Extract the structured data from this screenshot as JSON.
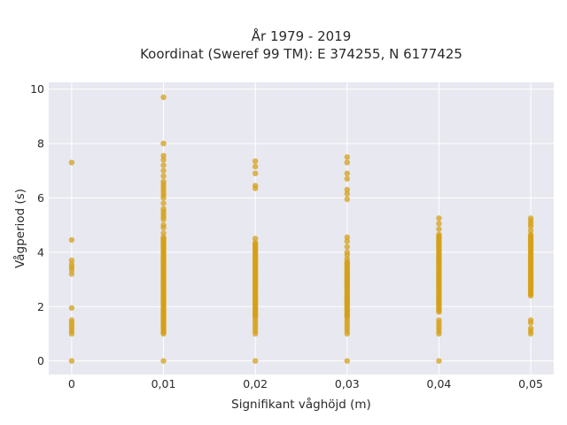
{
  "chart_data": {
    "type": "scatter",
    "title_line1": "År 1979 - 2019",
    "title_line2": "Koordinat (Sweref 99 TM): E 374255, N 6177425",
    "xlabel": "Signifikant våghöjd (m)",
    "ylabel": "Vågperiod (s)",
    "xlim": [
      -0.0025,
      0.0525
    ],
    "ylim": [
      -0.5,
      10.25
    ],
    "x_ticks": [
      {
        "value": 0,
        "label": "0"
      },
      {
        "value": 0.01,
        "label": "0,01"
      },
      {
        "value": 0.02,
        "label": "0,02"
      },
      {
        "value": 0.03,
        "label": "0,03"
      },
      {
        "value": 0.04,
        "label": "0,04"
      },
      {
        "value": 0.05,
        "label": "0,05"
      }
    ],
    "y_ticks": [
      {
        "value": 0,
        "label": "0"
      },
      {
        "value": 2,
        "label": "2"
      },
      {
        "value": 4,
        "label": "4"
      },
      {
        "value": 6,
        "label": "6"
      },
      {
        "value": 8,
        "label": "8"
      },
      {
        "value": 10,
        "label": "10"
      }
    ],
    "grid": true,
    "marker_color": "#d4a017",
    "series": [
      {
        "points": [
          {
            "x": 0,
            "y": 0
          },
          {
            "x": 0,
            "y": 1.0
          },
          {
            "x": 0,
            "y": 1.1
          },
          {
            "x": 0,
            "y": 1.2
          },
          {
            "x": 0,
            "y": 1.3
          },
          {
            "x": 0,
            "y": 1.4
          },
          {
            "x": 0,
            "y": 1.5
          },
          {
            "x": 0,
            "y": 1.95
          },
          {
            "x": 0,
            "y": 3.2
          },
          {
            "x": 0,
            "y": 3.35
          },
          {
            "x": 0,
            "y": 3.45
          },
          {
            "x": 0,
            "y": 3.55
          },
          {
            "x": 0,
            "y": 3.7
          },
          {
            "x": 0,
            "y": 4.45
          },
          {
            "x": 0,
            "y": 7.3
          },
          {
            "x": 0.01,
            "y": 0
          },
          {
            "x": 0.01,
            "y": 9.7
          },
          {
            "x": 0.01,
            "y": 8.0
          },
          {
            "x": 0.01,
            "y": 7.55
          },
          {
            "x": 0.01,
            "y": 7.4
          },
          {
            "x": 0.01,
            "y": 7.2
          },
          {
            "x": 0.01,
            "y": 7.0
          },
          {
            "x": 0.01,
            "y": 6.8
          },
          {
            "x": 0.01,
            "y": 6.6
          },
          {
            "x": 0.01,
            "y": 6.5
          },
          {
            "x": 0.01,
            "y": 6.4
          },
          {
            "x": 0.01,
            "y": 6.3
          },
          {
            "x": 0.01,
            "y": 6.2
          },
          {
            "x": 0.01,
            "y": 6.1
          },
          {
            "x": 0.01,
            "y": 6.0
          },
          {
            "x": 0.01,
            "y": 5.8
          },
          {
            "x": 0.01,
            "y": 5.6
          },
          {
            "x": 0.01,
            "y": 5.5
          },
          {
            "x": 0.01,
            "y": 5.4
          },
          {
            "x": 0.01,
            "y": 5.3
          },
          {
            "x": 0.01,
            "y": 5.2
          },
          {
            "x": 0.01,
            "y": 5.0
          },
          {
            "x": 0.01,
            "y": 4.9
          },
          {
            "x": 0.01,
            "y": 4.7
          },
          {
            "x": 0.01,
            "y": 4.55
          },
          {
            "x": 0.02,
            "y": 0
          },
          {
            "x": 0.02,
            "y": 7.35
          },
          {
            "x": 0.02,
            "y": 7.15
          },
          {
            "x": 0.02,
            "y": 6.9
          },
          {
            "x": 0.02,
            "y": 6.45
          },
          {
            "x": 0.02,
            "y": 6.35
          },
          {
            "x": 0.02,
            "y": 4.5
          },
          {
            "x": 0.02,
            "y": 1.5
          },
          {
            "x": 0.02,
            "y": 1.4
          },
          {
            "x": 0.02,
            "y": 1.3
          },
          {
            "x": 0.02,
            "y": 1.2
          },
          {
            "x": 0.02,
            "y": 1.1
          },
          {
            "x": 0.02,
            "y": 1.0
          },
          {
            "x": 0.03,
            "y": 0
          },
          {
            "x": 0.03,
            "y": 7.5
          },
          {
            "x": 0.03,
            "y": 7.3
          },
          {
            "x": 0.03,
            "y": 6.9
          },
          {
            "x": 0.03,
            "y": 6.7
          },
          {
            "x": 0.03,
            "y": 6.3
          },
          {
            "x": 0.03,
            "y": 6.15
          },
          {
            "x": 0.03,
            "y": 5.95
          },
          {
            "x": 0.03,
            "y": 4.55
          },
          {
            "x": 0.03,
            "y": 4.4
          },
          {
            "x": 0.03,
            "y": 4.2
          },
          {
            "x": 0.03,
            "y": 4.0
          },
          {
            "x": 0.03,
            "y": 3.9
          },
          {
            "x": 0.03,
            "y": 3.75
          },
          {
            "x": 0.03,
            "y": 1.5
          },
          {
            "x": 0.03,
            "y": 1.4
          },
          {
            "x": 0.03,
            "y": 1.3
          },
          {
            "x": 0.03,
            "y": 1.2
          },
          {
            "x": 0.03,
            "y": 1.1
          },
          {
            "x": 0.03,
            "y": 1.0
          },
          {
            "x": 0.04,
            "y": 0
          },
          {
            "x": 0.04,
            "y": 5.25
          },
          {
            "x": 0.04,
            "y": 5.05
          },
          {
            "x": 0.04,
            "y": 4.85
          },
          {
            "x": 0.04,
            "y": 4.65
          },
          {
            "x": 0.04,
            "y": 1.5
          },
          {
            "x": 0.04,
            "y": 1.4
          },
          {
            "x": 0.04,
            "y": 1.3
          },
          {
            "x": 0.04,
            "y": 1.2
          },
          {
            "x": 0.04,
            "y": 1.1
          },
          {
            "x": 0.04,
            "y": 1.0
          },
          {
            "x": 0.05,
            "y": 5.25
          },
          {
            "x": 0.05,
            "y": 5.15
          },
          {
            "x": 0.05,
            "y": 5.05
          },
          {
            "x": 0.05,
            "y": 4.95
          },
          {
            "x": 0.05,
            "y": 4.8
          },
          {
            "x": 0.05,
            "y": 4.65
          },
          {
            "x": 0.05,
            "y": 1.5
          },
          {
            "x": 0.05,
            "y": 1.4
          },
          {
            "x": 0.05,
            "y": 1.2
          },
          {
            "x": 0.05,
            "y": 1.1
          },
          {
            "x": 0.05,
            "y": 1.0
          }
        ],
        "dense_ranges": [
          {
            "x": 0.01,
            "y_from": 1.0,
            "y_to": 4.5
          },
          {
            "x": 0.02,
            "y_from": 1.6,
            "y_to": 4.35
          },
          {
            "x": 0.03,
            "y_from": 1.6,
            "y_to": 3.65
          },
          {
            "x": 0.04,
            "y_from": 1.8,
            "y_to": 4.6
          },
          {
            "x": 0.05,
            "y_from": 2.4,
            "y_to": 4.6
          }
        ]
      }
    ]
  }
}
